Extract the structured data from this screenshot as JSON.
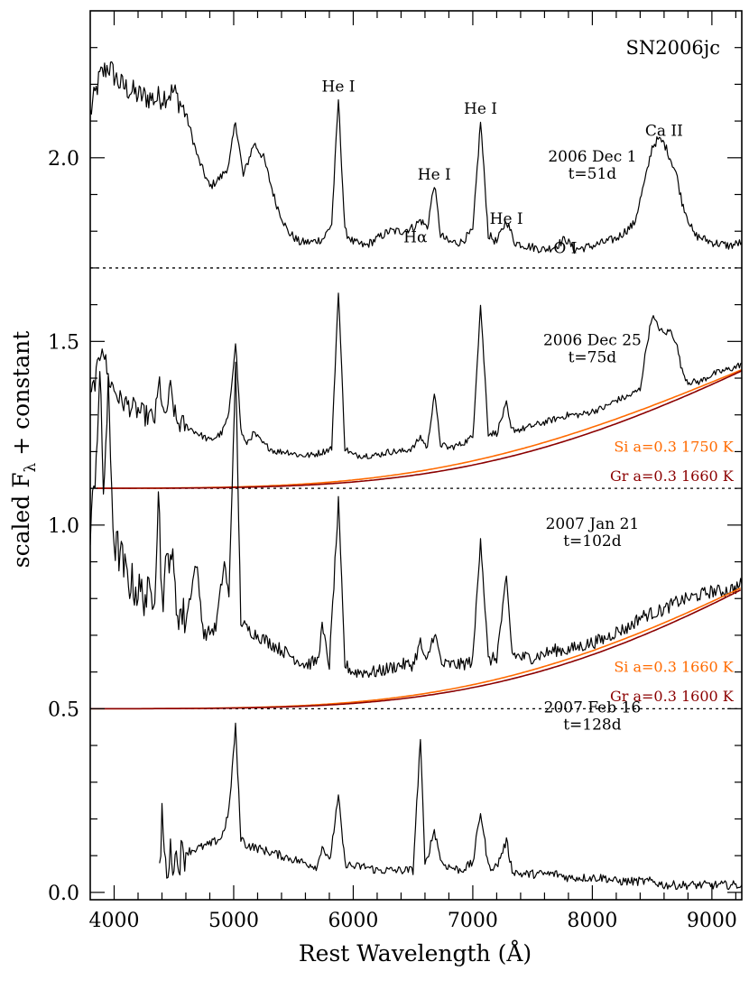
{
  "chart_data": {
    "type": "line",
    "title": "SN2006jc",
    "xlabel": "Rest Wavelength (Å)",
    "ylabel_main": "scaled F",
    "ylabel_sub": "λ",
    "ylabel_tail": " + constant",
    "xlim": [
      3800,
      9250
    ],
    "ylim": [
      -0.02,
      2.4
    ],
    "x_ticks": [
      4000,
      5000,
      6000,
      7000,
      8000,
      9000
    ],
    "x_tick_labels": [
      "4000",
      "5000",
      "6000",
      "7000",
      "8000",
      "9000"
    ],
    "y_ticks": [
      0.0,
      0.5,
      1.0,
      1.5,
      2.0
    ],
    "y_tick_labels": [
      "0.0",
      "0.5",
      "1.0",
      "1.5",
      "2.0"
    ],
    "grid": false,
    "baselines": [
      1.7,
      1.1,
      0.5
    ],
    "colors": {
      "spectrum": "#000000",
      "si_model": "#ff6a00",
      "gr_model": "#8b0000"
    },
    "line_labels": [
      {
        "text": "He I",
        "x": 5876,
        "y": 2.18
      },
      {
        "text": "He I",
        "x": 6678,
        "y": 1.94
      },
      {
        "text": "He I",
        "x": 7065,
        "y": 2.12
      },
      {
        "text": "He I",
        "x": 7281,
        "y": 1.82
      },
      {
        "text": "Hα",
        "x": 6520,
        "y": 1.77
      },
      {
        "text": "O I",
        "x": 7774,
        "y": 1.74
      },
      {
        "text": "Ca II",
        "x": 8600,
        "y": 2.06
      }
    ],
    "series": [
      {
        "epoch": "2006 Dec 1",
        "phase": "t=51d",
        "label_pos": [
          8000,
          1.99
        ],
        "x": [
          3800,
          3880,
          3950,
          4050,
          4200,
          4350,
          4500,
          4600,
          4700,
          4800,
          4900,
          4960,
          5015,
          5080,
          5130,
          5170,
          5250,
          5350,
          5450,
          5550,
          5650,
          5750,
          5820,
          5876,
          5930,
          6000,
          6100,
          6200,
          6300,
          6400,
          6500,
          6562,
          6620,
          6678,
          6730,
          6800,
          6900,
          7000,
          7065,
          7130,
          7200,
          7281,
          7350,
          7450,
          7600,
          7700,
          7774,
          7850,
          8000,
          8200,
          8350,
          8450,
          8500,
          8550,
          8600,
          8650,
          8700,
          8750,
          8850,
          9000,
          9150,
          9250
        ],
        "values": [
          2.12,
          2.22,
          2.25,
          2.2,
          2.17,
          2.16,
          2.18,
          2.12,
          2.0,
          1.92,
          1.95,
          1.98,
          2.1,
          1.95,
          2.0,
          2.04,
          2.0,
          1.88,
          1.8,
          1.77,
          1.77,
          1.78,
          1.82,
          2.16,
          1.8,
          1.77,
          1.76,
          1.78,
          1.8,
          1.8,
          1.81,
          1.83,
          1.81,
          1.93,
          1.79,
          1.77,
          1.77,
          1.8,
          2.1,
          1.79,
          1.77,
          1.83,
          1.77,
          1.76,
          1.75,
          1.76,
          1.78,
          1.75,
          1.76,
          1.78,
          1.82,
          1.95,
          2.03,
          2.05,
          2.04,
          2.0,
          1.96,
          1.88,
          1.79,
          1.77,
          1.76,
          1.77
        ],
        "noise": 0.012,
        "noise_blue": 0.035
      },
      {
        "epoch": "2006 Dec 25",
        "phase": "t=75d",
        "label_pos": [
          8000,
          1.49
        ],
        "x": [
          3800,
          3860,
          3900,
          3950,
          4050,
          4150,
          4250,
          4340,
          4380,
          4420,
          4471,
          4520,
          4600,
          4700,
          4800,
          4900,
          4960,
          5015,
          5060,
          5100,
          5169,
          5250,
          5350,
          5450,
          5550,
          5650,
          5750,
          5820,
          5876,
          5930,
          6000,
          6100,
          6200,
          6300,
          6400,
          6500,
          6562,
          6620,
          6678,
          6730,
          6800,
          6900,
          7000,
          7065,
          7130,
          7200,
          7281,
          7320,
          7400,
          7500,
          7600,
          7700,
          7800,
          7900,
          8000,
          8100,
          8200,
          8300,
          8400,
          8450,
          8500,
          8550,
          8600,
          8650,
          8700,
          8750,
          8800,
          8900,
          9000,
          9100,
          9200,
          9250
        ],
        "values": [
          1.34,
          1.42,
          1.5,
          1.4,
          1.34,
          1.32,
          1.3,
          1.29,
          1.39,
          1.28,
          1.37,
          1.28,
          1.27,
          1.25,
          1.23,
          1.25,
          1.3,
          1.5,
          1.26,
          1.22,
          1.25,
          1.22,
          1.2,
          1.2,
          1.19,
          1.19,
          1.2,
          1.21,
          1.64,
          1.21,
          1.19,
          1.19,
          1.19,
          1.2,
          1.2,
          1.21,
          1.24,
          1.21,
          1.36,
          1.22,
          1.21,
          1.22,
          1.24,
          1.6,
          1.25,
          1.25,
          1.33,
          1.26,
          1.26,
          1.27,
          1.28,
          1.29,
          1.3,
          1.3,
          1.31,
          1.32,
          1.34,
          1.35,
          1.37,
          1.48,
          1.57,
          1.54,
          1.52,
          1.53,
          1.5,
          1.42,
          1.39,
          1.39,
          1.41,
          1.42,
          1.43,
          1.44
        ],
        "noise": 0.009,
        "noise_blue": 0.03,
        "models": [
          {
            "label": "Si a=0.3 1750 K",
            "color": "#ff6a00",
            "temp": 1750,
            "baseline": 1.1,
            "x_range": [
              3850,
              9250
            ],
            "at_max": 0.323
          },
          {
            "label": "Gr a=0.3 1660 K",
            "color": "#8b0000",
            "temp": 1660,
            "baseline": 1.1,
            "x_range": [
              3850,
              9250
            ],
            "at_max": 0.32
          }
        ],
        "model_label_pos": [
          [
            9180,
            1.2
          ],
          [
            9180,
            1.12
          ]
        ]
      },
      {
        "epoch": "2007 Jan 21",
        "phase": "t=102d",
        "label_pos": [
          8000,
          0.99
        ],
        "x": [
          3800,
          3850,
          3880,
          3910,
          3950,
          4000,
          4050,
          4100,
          4200,
          4300,
          4340,
          4370,
          4400,
          4471,
          4520,
          4600,
          4686,
          4750,
          4850,
          4922,
          4960,
          5015,
          5060,
          5100,
          5200,
          5300,
          5400,
          5500,
          5600,
          5700,
          5740,
          5800,
          5876,
          5930,
          6000,
          6100,
          6200,
          6300,
          6400,
          6500,
          6562,
          6610,
          6678,
          6740,
          6800,
          6900,
          7000,
          7065,
          7130,
          7200,
          7281,
          7330,
          7400,
          7500,
          7600,
          7700,
          7800,
          7900,
          8000,
          8100,
          8200,
          8300,
          8400,
          8500,
          8600,
          8700,
          8800,
          8900,
          9000,
          9100,
          9200,
          9250
        ],
        "values": [
          0.95,
          1.2,
          1.4,
          1.1,
          1.35,
          0.95,
          0.92,
          0.86,
          0.82,
          0.8,
          0.84,
          1.1,
          0.8,
          0.95,
          0.78,
          0.74,
          0.9,
          0.7,
          0.72,
          0.9,
          0.8,
          1.43,
          0.74,
          0.72,
          0.7,
          0.68,
          0.66,
          0.64,
          0.62,
          0.63,
          0.72,
          0.62,
          1.06,
          0.62,
          0.6,
          0.6,
          0.6,
          0.61,
          0.62,
          0.62,
          0.68,
          0.62,
          0.71,
          0.62,
          0.62,
          0.62,
          0.63,
          0.97,
          0.63,
          0.64,
          0.85,
          0.65,
          0.64,
          0.64,
          0.65,
          0.66,
          0.66,
          0.67,
          0.68,
          0.69,
          0.71,
          0.72,
          0.75,
          0.76,
          0.77,
          0.79,
          0.8,
          0.81,
          0.82,
          0.82,
          0.83,
          0.84
        ],
        "noise": 0.018,
        "noise_blue": 0.06,
        "models": [
          {
            "label": "Si a=0.3 1660 K",
            "color": "#ff6a00",
            "temp": 1660,
            "baseline": 0.5,
            "x_range": [
              3800,
              9250
            ],
            "at_max": 0.33
          },
          {
            "label": "Gr a=0.3 1600 K",
            "color": "#8b0000",
            "temp": 1600,
            "baseline": 0.5,
            "x_range": [
              3800,
              9250
            ],
            "at_max": 0.325
          }
        ],
        "model_label_pos": [
          [
            9180,
            0.6
          ],
          [
            9180,
            0.52
          ]
        ]
      },
      {
        "epoch": "2007 Feb 16",
        "phase": "t=128d",
        "label_pos": [
          8000,
          0.49
        ],
        "x": [
          4380,
          4400,
          4430,
          4471,
          4520,
          4600,
          4700,
          4800,
          4900,
          4960,
          5015,
          5060,
          5100,
          5200,
          5300,
          5400,
          5500,
          5600,
          5700,
          5740,
          5800,
          5876,
          5930,
          6000,
          6100,
          6200,
          6300,
          6400,
          6500,
          6562,
          6600,
          6678,
          6740,
          6800,
          6900,
          7000,
          7065,
          7130,
          7200,
          7281,
          7330,
          7400,
          7500,
          7600,
          7700,
          7800,
          7900,
          8000,
          8100,
          8200,
          8300,
          8400,
          8500,
          8600,
          8700,
          8800,
          8900,
          9000,
          9100,
          9200,
          9250
        ],
        "values": [
          0.05,
          0.22,
          0.06,
          0.1,
          0.09,
          0.11,
          0.12,
          0.13,
          0.15,
          0.22,
          0.45,
          0.15,
          0.13,
          0.12,
          0.11,
          0.1,
          0.09,
          0.08,
          0.07,
          0.13,
          0.08,
          0.26,
          0.08,
          0.07,
          0.07,
          0.06,
          0.06,
          0.06,
          0.06,
          0.42,
          0.07,
          0.17,
          0.08,
          0.07,
          0.06,
          0.08,
          0.22,
          0.07,
          0.07,
          0.14,
          0.06,
          0.05,
          0.05,
          0.05,
          0.05,
          0.04,
          0.04,
          0.04,
          0.04,
          0.03,
          0.03,
          0.03,
          0.03,
          0.02,
          0.02,
          0.02,
          0.02,
          0.02,
          0.02,
          0.02,
          0.02
        ],
        "noise": 0.012,
        "noise_blue": 0.05
      }
    ]
  }
}
